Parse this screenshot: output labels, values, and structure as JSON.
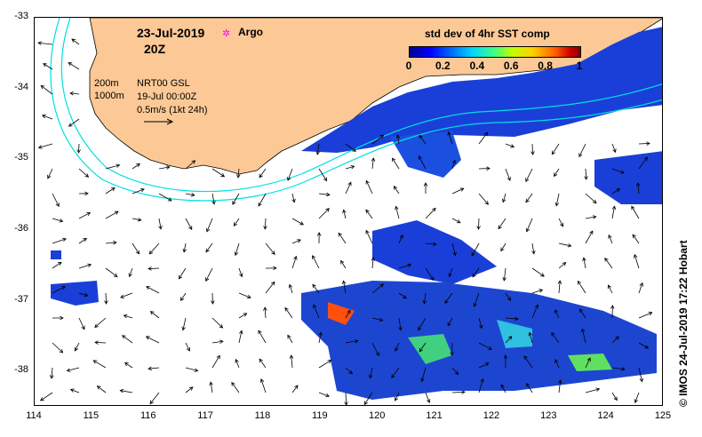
{
  "header": {
    "date": "23-Jul-2019",
    "hour": "20Z",
    "argo_label": "Argo",
    "argo_symbol": "✲"
  },
  "legend": {
    "isobath_200": "200m",
    "isobath_1000": "1000m",
    "product": "NRT00 GSL",
    "timestamp": "19-Jul 00:00Z",
    "scale": "0.5m/s (1kt 24h)"
  },
  "colorbar": {
    "title": "std dev of 4hr SST comp",
    "ticks": [
      "0",
      "0.2",
      "0.4",
      "0.6",
      "0.8",
      "1"
    ],
    "stops": [
      "#00008f",
      "#0000ff",
      "#00d8ff",
      "#40ff80",
      "#ffd000",
      "#ff6000",
      "#800000"
    ]
  },
  "axes": {
    "x_ticks": [
      "114",
      "115",
      "116",
      "117",
      "118",
      "119",
      "120",
      "121",
      "122",
      "123",
      "124",
      "125"
    ],
    "y_ticks": [
      "-33",
      "-34",
      "-35",
      "-36",
      "-37",
      "-38"
    ],
    "xlim": [
      114,
      125
    ],
    "ylim": [
      -38.5,
      -33
    ]
  },
  "credit": "© IMOS 24-Jul-2019 17:22 Hobart",
  "colors": {
    "land": "#fcc996",
    "isobath_200": "#00e0e0",
    "isobath_1000": "#ffffff",
    "arrow": "#000000"
  }
}
